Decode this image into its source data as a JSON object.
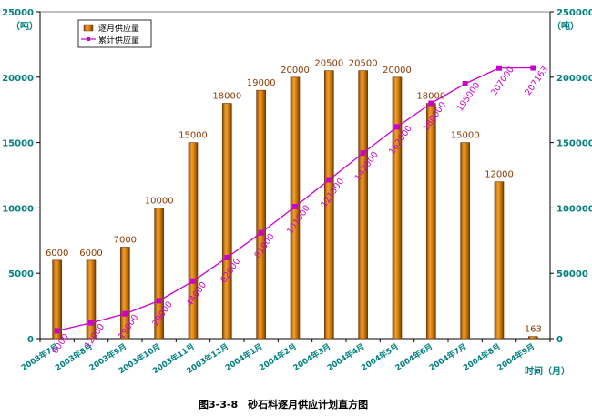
{
  "chart_data": {
    "type": "bar",
    "categories": [
      "2003年7月",
      "2003年8月",
      "2003年9月",
      "2003年10月",
      "2003年11月",
      "2003年12月",
      "2004年1月",
      "2004年2月",
      "2004年3月",
      "2004年4月",
      "2004年5月",
      "2004年6月",
      "2004年7月",
      "2004年8月",
      "2004年9月"
    ],
    "series": [
      {
        "name": "逐月供应量",
        "type": "bar",
        "axis": "left",
        "values": [
          6000,
          6000,
          7000,
          10000,
          15000,
          18000,
          19000,
          20000,
          20500,
          20500,
          20000,
          18000,
          15000,
          12000,
          163
        ]
      },
      {
        "name": "累计供应量",
        "type": "line",
        "axis": "right",
        "values": [
          6000,
          12000,
          19000,
          29000,
          44000,
          62000,
          81000,
          101000,
          121500,
          142000,
          162000,
          180000,
          195000,
          207000,
          207163
        ]
      }
    ],
    "left_axis": {
      "unit": "（吨）",
      "ylim": [
        0,
        25000
      ],
      "ticks": [
        0,
        5000,
        10000,
        15000,
        20000,
        25000
      ]
    },
    "right_axis": {
      "unit": "（吨）",
      "ylim": [
        0,
        250000
      ],
      "ticks": [
        0,
        50000,
        100000,
        150000,
        200000,
        250000
      ]
    },
    "xlabel": "时间（月）",
    "caption": "图3-3-8　砂石料逐月供应计划直方图",
    "legend": {
      "placement": "top-left"
    },
    "colors": {
      "bar": "#d2780a",
      "bar_dark": "#8a4500",
      "line": "#cc00cc",
      "axis_text": "#008080"
    }
  }
}
